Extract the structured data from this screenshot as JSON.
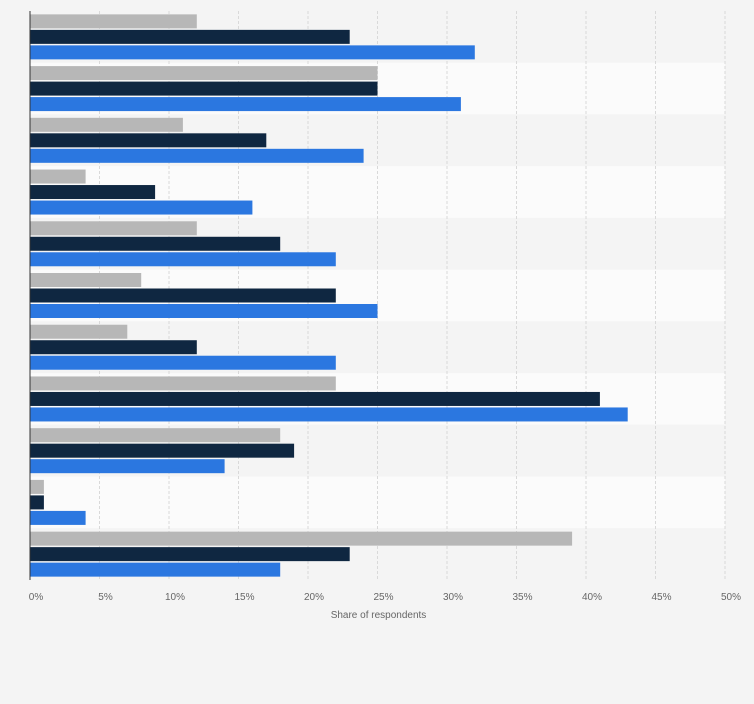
{
  "chart_data": {
    "type": "bar",
    "orientation": "horizontal",
    "title": "",
    "xlabel": "Share of respondents",
    "ylabel": "",
    "xlim": [
      0,
      50
    ],
    "xticks": [
      "0%",
      "5%",
      "10%",
      "15%",
      "20%",
      "25%",
      "30%",
      "35%",
      "40%",
      "45%",
      "50%"
    ],
    "grid": true,
    "legend": "none",
    "categories": [
      "",
      "",
      "",
      "",
      "",
      "",
      "",
      "",
      "",
      "",
      ""
    ],
    "series": [
      {
        "color": "#b7b7b7",
        "values": [
          12,
          25,
          11,
          4,
          12,
          8,
          7,
          22,
          18,
          1,
          39
        ]
      },
      {
        "color": "#0f2741",
        "values": [
          23,
          25,
          17,
          9,
          18,
          22,
          12,
          41,
          19,
          1,
          23
        ]
      },
      {
        "color": "#2b77e0",
        "values": [
          32,
          31,
          24,
          16,
          22,
          25,
          22,
          43,
          14,
          4,
          18
        ]
      }
    ]
  }
}
